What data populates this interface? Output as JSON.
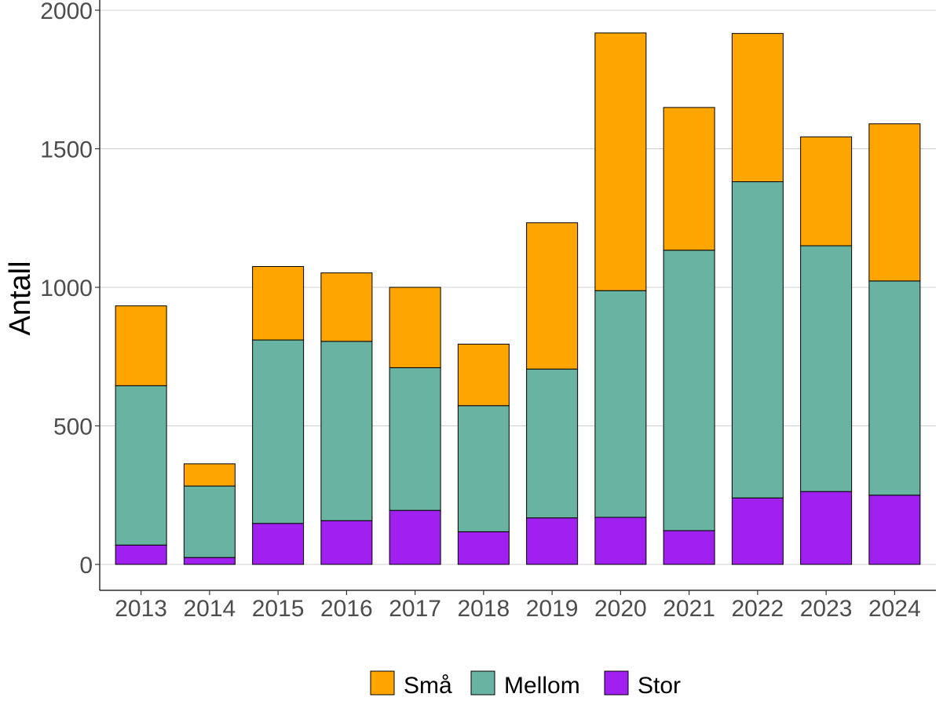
{
  "chart_data": {
    "type": "bar",
    "stacked": true,
    "categories": [
      "2013",
      "2014",
      "2015",
      "2016",
      "2017",
      "2018",
      "2019",
      "2020",
      "2021",
      "2022",
      "2023",
      "2024"
    ],
    "series": [
      {
        "name": "Stor",
        "color": "#a020f0",
        "values": [
          70,
          25,
          148,
          158,
          195,
          118,
          168,
          170,
          122,
          240,
          263,
          250
        ]
      },
      {
        "name": "Mellom",
        "color": "#69b3a2",
        "values": [
          575,
          258,
          662,
          647,
          515,
          455,
          537,
          818,
          1012,
          1141,
          887,
          773
        ]
      },
      {
        "name": "Små",
        "color": "#ffa500",
        "values": [
          288,
          80,
          265,
          247,
          290,
          222,
          528,
          930,
          515,
          535,
          393,
          567
        ]
      }
    ],
    "title": "",
    "xlabel": "",
    "ylabel": "Antall",
    "ylim": [
      0,
      2000
    ],
    "yticks": [
      0,
      500,
      1000,
      1500,
      2000
    ],
    "grid": "horizontal",
    "legend": {
      "position": "bottom",
      "order": [
        "Små",
        "Mellom",
        "Stor"
      ]
    }
  }
}
